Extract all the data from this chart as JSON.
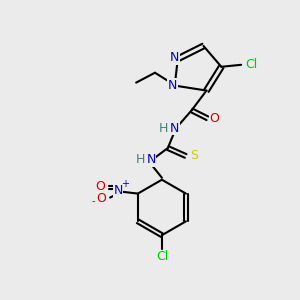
{
  "bg_color": "#ebebeb",
  "atom_colors": {
    "C": "#000000",
    "N": "#0000cc",
    "O": "#cc0000",
    "S": "#cccc00",
    "Cl": "#00cc00",
    "H": "#408080"
  },
  "figsize": [
    3.0,
    3.0
  ],
  "dpi": 100
}
